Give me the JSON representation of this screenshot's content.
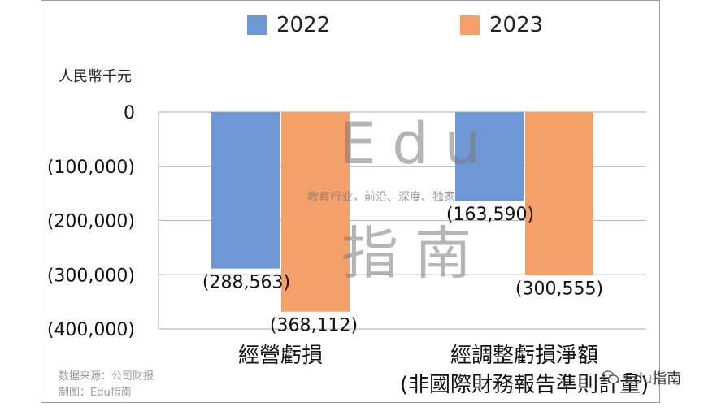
{
  "chart_data": {
    "type": "bar",
    "unit_label": "人民幣千元",
    "categories": [
      [
        "經營虧損"
      ],
      [
        "經調整虧損淨額",
        "(非國際財務報告準則計量)"
      ]
    ],
    "series": [
      {
        "name": "2022",
        "color": "#6f97d6",
        "values": [
          -288563,
          -163590
        ]
      },
      {
        "name": "2023",
        "color": "#f4a06a",
        "values": [
          -368112,
          -300555
        ]
      }
    ],
    "data_labels": [
      [
        "(288,563)",
        "(163,590)"
      ],
      [
        "(368,112)",
        "(300,555)"
      ]
    ],
    "ylim": [
      -400000,
      0
    ],
    "yticks": [
      0,
      -100000,
      -200000,
      -300000,
      -400000
    ],
    "ytick_labels": [
      "0",
      "(100,000)",
      "(200,000)",
      "(300,000)",
      "(400,000)"
    ],
    "grid": true,
    "legend_position": "top"
  },
  "notes": {
    "source": "数据来源：公司财报",
    "made_by": "制图：Edu指南"
  },
  "watermark": {
    "line1": "Edu",
    "line2": "教育行业，前沿、深度、独家",
    "line3": "指南"
  },
  "badge": {
    "icon": "wechat-icon",
    "text": "Edu指南"
  }
}
